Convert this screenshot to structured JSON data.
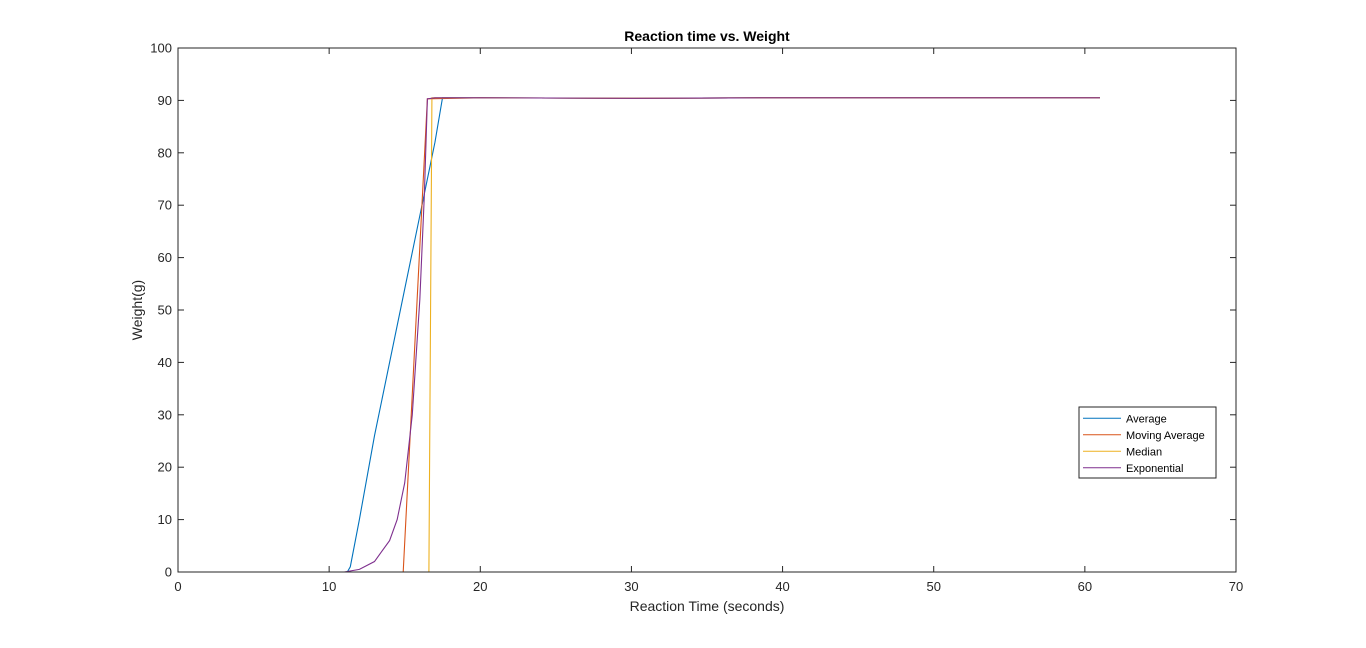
{
  "chart_data": {
    "type": "line",
    "title": "Reaction time vs. Weight",
    "xlabel": "Reaction Time (seconds)",
    "ylabel": "Weight(g)",
    "xlim": [
      0,
      70
    ],
    "ylim": [
      0,
      100
    ],
    "xticks": [
      0,
      10,
      20,
      30,
      40,
      50,
      60,
      70
    ],
    "yticks": [
      0,
      10,
      20,
      30,
      40,
      50,
      60,
      70,
      80,
      90,
      100
    ],
    "grid": false,
    "legend_position": "right",
    "series": [
      {
        "name": "Average",
        "color": "#0072BD",
        "x": [
          0,
          11.2,
          11.4,
          12.0,
          13.0,
          14.0,
          15.0,
          16.0,
          16.5,
          17.0,
          17.5,
          20,
          30,
          40,
          50,
          61
        ],
        "y": [
          0,
          0,
          1.0,
          10.0,
          26.0,
          40.0,
          54.0,
          68.0,
          75.0,
          82.0,
          90.5,
          90.5,
          90.4,
          90.5,
          90.5,
          90.5
        ]
      },
      {
        "name": "Moving Average",
        "color": "#D95319",
        "x": [
          0,
          14.9,
          16.5,
          20,
          30,
          40,
          50,
          61
        ],
        "y": [
          0,
          0,
          90.3,
          90.5,
          90.4,
          90.5,
          90.5,
          90.5
        ]
      },
      {
        "name": "Median",
        "color": "#EDB120",
        "x": [
          0,
          16.6,
          16.8,
          20,
          30,
          40,
          50,
          61
        ],
        "y": [
          0,
          0,
          90.5,
          90.5,
          90.4,
          90.5,
          90.5,
          90.5
        ]
      },
      {
        "name": "Exponential",
        "color": "#7E2F8E",
        "x": [
          0,
          11.0,
          12.0,
          13.0,
          14.0,
          14.5,
          15.0,
          15.5,
          16.0,
          16.3,
          16.5,
          17.0,
          20,
          30,
          40,
          50,
          61
        ],
        "y": [
          0,
          0,
          0.5,
          2.0,
          6.0,
          10.0,
          17.0,
          30.0,
          52.0,
          72.0,
          90.3,
          90.5,
          90.5,
          90.4,
          90.5,
          90.5,
          90.5
        ]
      }
    ]
  }
}
